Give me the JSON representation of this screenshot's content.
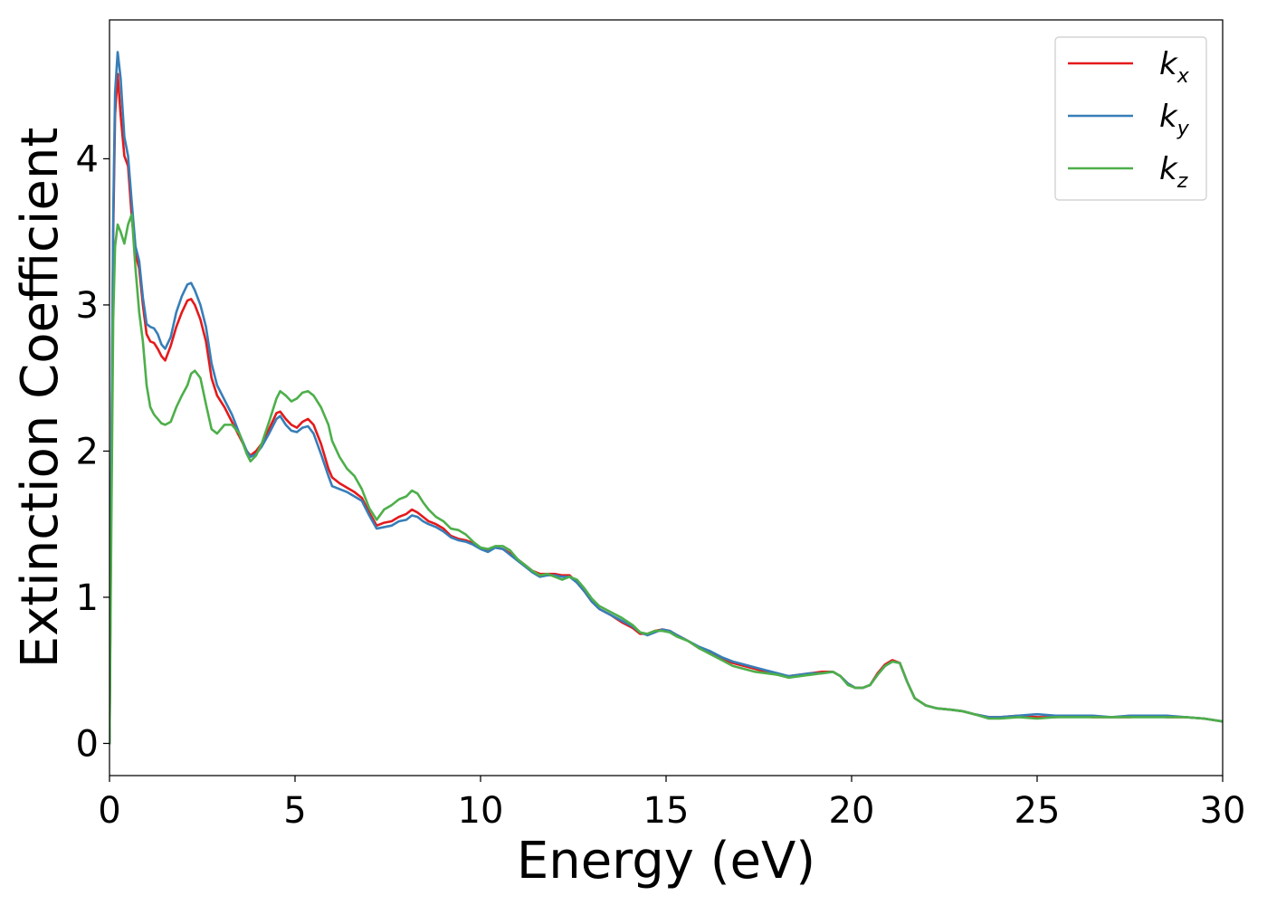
{
  "chart_data": {
    "type": "line",
    "title": "",
    "xlabel": "Energy (eV)",
    "ylabel": "Extinction Coefficient",
    "xlim": [
      0,
      30
    ],
    "ylim": [
      -0.22,
      4.95
    ],
    "xticks": [
      0,
      5,
      10,
      15,
      20,
      25,
      30
    ],
    "yticks": [
      0,
      1,
      2,
      3,
      4
    ],
    "grid": false,
    "legend_position": "top-right",
    "series": [
      {
        "name": "k_x",
        "legend_main": "k",
        "legend_sub": "x",
        "color": "#e41a1c",
        "x": [
          0,
          0.05,
          0.1,
          0.15,
          0.22,
          0.3,
          0.4,
          0.5,
          0.6,
          0.7,
          0.8,
          0.9,
          1.0,
          1.1,
          1.2,
          1.3,
          1.4,
          1.5,
          1.65,
          1.8,
          1.95,
          2.1,
          2.2,
          2.3,
          2.45,
          2.6,
          2.75,
          2.9,
          3.1,
          3.3,
          3.5,
          3.7,
          3.8,
          3.95,
          4.1,
          4.3,
          4.5,
          4.6,
          4.75,
          4.9,
          5.05,
          5.2,
          5.35,
          5.5,
          5.7,
          5.9,
          6.0,
          6.2,
          6.4,
          6.6,
          6.8,
          7.0,
          7.2,
          7.4,
          7.6,
          7.8,
          8.0,
          8.15,
          8.3,
          8.45,
          8.6,
          8.8,
          9.0,
          9.2,
          9.4,
          9.6,
          9.8,
          10.0,
          10.2,
          10.4,
          10.6,
          10.8,
          11.0,
          11.2,
          11.4,
          11.6,
          11.8,
          12.0,
          12.2,
          12.4,
          12.6,
          12.8,
          13.0,
          13.2,
          13.5,
          13.8,
          14.1,
          14.3,
          14.5,
          14.7,
          14.9,
          15.1,
          15.3,
          15.6,
          15.9,
          16.2,
          16.5,
          16.8,
          17.1,
          17.4,
          17.7,
          18.0,
          18.3,
          18.6,
          18.9,
          19.2,
          19.5,
          19.7,
          19.9,
          20.1,
          20.3,
          20.5,
          20.7,
          20.9,
          21.1,
          21.3,
          21.5,
          21.7,
          22.0,
          22.3,
          22.7,
          23.0,
          23.3,
          23.7,
          24.0,
          24.5,
          25.0,
          25.5,
          26.0,
          26.5,
          27.0,
          27.5,
          28.0,
          28.5,
          29.0,
          29.5,
          30.0
        ],
        "y": [
          0,
          1.8,
          3.5,
          4.3,
          4.58,
          4.3,
          4.02,
          3.95,
          3.6,
          3.35,
          3.25,
          3.0,
          2.8,
          2.75,
          2.74,
          2.7,
          2.65,
          2.62,
          2.72,
          2.85,
          2.95,
          3.03,
          3.04,
          3.0,
          2.9,
          2.75,
          2.5,
          2.38,
          2.3,
          2.2,
          2.1,
          2.0,
          1.97,
          2.0,
          2.05,
          2.15,
          2.26,
          2.27,
          2.22,
          2.18,
          2.16,
          2.2,
          2.22,
          2.18,
          2.05,
          1.88,
          1.82,
          1.78,
          1.75,
          1.72,
          1.68,
          1.58,
          1.49,
          1.51,
          1.52,
          1.55,
          1.57,
          1.6,
          1.58,
          1.55,
          1.52,
          1.5,
          1.47,
          1.42,
          1.4,
          1.39,
          1.37,
          1.34,
          1.32,
          1.34,
          1.33,
          1.3,
          1.26,
          1.22,
          1.18,
          1.16,
          1.16,
          1.16,
          1.15,
          1.15,
          1.1,
          1.04,
          0.97,
          0.92,
          0.88,
          0.83,
          0.79,
          0.75,
          0.75,
          0.77,
          0.78,
          0.77,
          0.74,
          0.7,
          0.65,
          0.62,
          0.58,
          0.55,
          0.53,
          0.51,
          0.49,
          0.47,
          0.46,
          0.47,
          0.48,
          0.49,
          0.49,
          0.46,
          0.41,
          0.38,
          0.38,
          0.4,
          0.48,
          0.54,
          0.57,
          0.55,
          0.42,
          0.31,
          0.26,
          0.24,
          0.23,
          0.22,
          0.2,
          0.18,
          0.18,
          0.19,
          0.18,
          0.18,
          0.19,
          0.18,
          0.18,
          0.18,
          0.19,
          0.18,
          0.18,
          0.17,
          0.15
        ]
      },
      {
        "name": "k_y",
        "legend_main": "k",
        "legend_sub": "y",
        "color": "#377eb8",
        "x": [
          0,
          0.05,
          0.1,
          0.15,
          0.22,
          0.3,
          0.4,
          0.5,
          0.6,
          0.7,
          0.8,
          0.9,
          1.0,
          1.1,
          1.2,
          1.3,
          1.4,
          1.5,
          1.65,
          1.8,
          1.95,
          2.1,
          2.2,
          2.3,
          2.45,
          2.6,
          2.75,
          2.9,
          3.1,
          3.3,
          3.5,
          3.7,
          3.8,
          3.95,
          4.1,
          4.3,
          4.5,
          4.6,
          4.75,
          4.9,
          5.05,
          5.2,
          5.35,
          5.5,
          5.7,
          5.9,
          6.0,
          6.2,
          6.4,
          6.6,
          6.8,
          7.0,
          7.2,
          7.4,
          7.6,
          7.8,
          8.0,
          8.15,
          8.3,
          8.45,
          8.6,
          8.8,
          9.0,
          9.2,
          9.4,
          9.6,
          9.8,
          10.0,
          10.2,
          10.4,
          10.6,
          10.8,
          11.0,
          11.2,
          11.4,
          11.6,
          11.8,
          12.0,
          12.2,
          12.4,
          12.6,
          12.8,
          13.0,
          13.2,
          13.5,
          13.8,
          14.1,
          14.3,
          14.5,
          14.7,
          14.9,
          15.1,
          15.3,
          15.6,
          15.9,
          16.2,
          16.5,
          16.8,
          17.1,
          17.4,
          17.7,
          18.0,
          18.3,
          18.6,
          18.9,
          19.2,
          19.5,
          19.7,
          19.9,
          20.1,
          20.3,
          20.5,
          20.7,
          20.9,
          21.1,
          21.3,
          21.5,
          21.7,
          22.0,
          22.3,
          22.7,
          23.0,
          23.3,
          23.7,
          24.0,
          24.5,
          25.0,
          25.5,
          26.0,
          26.5,
          27.0,
          27.5,
          28.0,
          28.5,
          29.0,
          29.5,
          30.0
        ],
        "y": [
          0,
          1.9,
          3.6,
          4.45,
          4.73,
          4.55,
          4.15,
          4.02,
          3.7,
          3.4,
          3.3,
          3.05,
          2.87,
          2.85,
          2.84,
          2.8,
          2.73,
          2.7,
          2.78,
          2.95,
          3.06,
          3.14,
          3.15,
          3.1,
          3.0,
          2.85,
          2.6,
          2.45,
          2.35,
          2.25,
          2.12,
          2.0,
          1.96,
          1.98,
          2.03,
          2.12,
          2.22,
          2.24,
          2.18,
          2.14,
          2.13,
          2.16,
          2.17,
          2.12,
          1.98,
          1.83,
          1.76,
          1.74,
          1.72,
          1.69,
          1.66,
          1.56,
          1.47,
          1.48,
          1.49,
          1.52,
          1.53,
          1.56,
          1.55,
          1.52,
          1.5,
          1.48,
          1.45,
          1.41,
          1.39,
          1.38,
          1.36,
          1.33,
          1.31,
          1.34,
          1.33,
          1.29,
          1.25,
          1.21,
          1.17,
          1.14,
          1.15,
          1.15,
          1.14,
          1.14,
          1.1,
          1.04,
          0.97,
          0.92,
          0.88,
          0.84,
          0.8,
          0.76,
          0.74,
          0.76,
          0.78,
          0.77,
          0.74,
          0.7,
          0.66,
          0.63,
          0.59,
          0.56,
          0.54,
          0.52,
          0.5,
          0.48,
          0.46,
          0.47,
          0.48,
          0.48,
          0.49,
          0.46,
          0.41,
          0.38,
          0.38,
          0.4,
          0.47,
          0.53,
          0.56,
          0.55,
          0.42,
          0.31,
          0.26,
          0.24,
          0.23,
          0.22,
          0.2,
          0.18,
          0.18,
          0.19,
          0.2,
          0.19,
          0.19,
          0.19,
          0.18,
          0.19,
          0.19,
          0.19,
          0.18,
          0.17,
          0.15
        ]
      },
      {
        "name": "k_z",
        "legend_main": "k",
        "legend_sub": "z",
        "color": "#4daf4a",
        "x": [
          0,
          0.05,
          0.1,
          0.15,
          0.22,
          0.3,
          0.4,
          0.5,
          0.6,
          0.7,
          0.8,
          0.9,
          1.0,
          1.1,
          1.2,
          1.3,
          1.4,
          1.5,
          1.65,
          1.8,
          1.95,
          2.1,
          2.2,
          2.3,
          2.45,
          2.6,
          2.75,
          2.9,
          3.1,
          3.3,
          3.5,
          3.7,
          3.8,
          3.95,
          4.1,
          4.3,
          4.5,
          4.6,
          4.75,
          4.9,
          5.05,
          5.2,
          5.35,
          5.5,
          5.7,
          5.9,
          6.0,
          6.2,
          6.4,
          6.6,
          6.8,
          7.0,
          7.2,
          7.4,
          7.6,
          7.8,
          8.0,
          8.15,
          8.3,
          8.45,
          8.6,
          8.8,
          9.0,
          9.2,
          9.4,
          9.6,
          9.8,
          10.0,
          10.2,
          10.4,
          10.6,
          10.8,
          11.0,
          11.2,
          11.4,
          11.6,
          11.8,
          12.0,
          12.2,
          12.4,
          12.6,
          12.8,
          13.0,
          13.2,
          13.5,
          13.8,
          14.1,
          14.3,
          14.5,
          14.7,
          14.9,
          15.1,
          15.3,
          15.6,
          15.9,
          16.2,
          16.5,
          16.8,
          17.1,
          17.4,
          17.7,
          18.0,
          18.3,
          18.6,
          18.9,
          19.2,
          19.5,
          19.7,
          19.9,
          20.1,
          20.3,
          20.5,
          20.7,
          20.9,
          21.1,
          21.3,
          21.5,
          21.7,
          22.0,
          22.3,
          22.7,
          23.0,
          23.3,
          23.7,
          24.0,
          24.5,
          25.0,
          25.5,
          26.0,
          26.5,
          27.0,
          27.5,
          28.0,
          28.5,
          29.0,
          29.5,
          30.0
        ],
        "y": [
          0,
          1.5,
          2.9,
          3.4,
          3.55,
          3.5,
          3.42,
          3.55,
          3.62,
          3.25,
          2.95,
          2.75,
          2.45,
          2.3,
          2.25,
          2.22,
          2.19,
          2.18,
          2.2,
          2.3,
          2.38,
          2.45,
          2.53,
          2.55,
          2.5,
          2.32,
          2.15,
          2.12,
          2.18,
          2.18,
          2.12,
          1.98,
          1.93,
          1.97,
          2.05,
          2.2,
          2.36,
          2.41,
          2.38,
          2.34,
          2.36,
          2.4,
          2.41,
          2.38,
          2.3,
          2.18,
          2.07,
          1.96,
          1.88,
          1.83,
          1.74,
          1.61,
          1.53,
          1.6,
          1.63,
          1.67,
          1.69,
          1.73,
          1.71,
          1.65,
          1.6,
          1.55,
          1.52,
          1.47,
          1.46,
          1.43,
          1.38,
          1.34,
          1.33,
          1.35,
          1.35,
          1.32,
          1.26,
          1.22,
          1.18,
          1.15,
          1.16,
          1.14,
          1.12,
          1.14,
          1.12,
          1.06,
          0.99,
          0.94,
          0.9,
          0.86,
          0.81,
          0.76,
          0.75,
          0.77,
          0.77,
          0.76,
          0.73,
          0.7,
          0.65,
          0.61,
          0.57,
          0.53,
          0.51,
          0.49,
          0.48,
          0.47,
          0.45,
          0.46,
          0.47,
          0.48,
          0.49,
          0.46,
          0.4,
          0.38,
          0.38,
          0.4,
          0.47,
          0.53,
          0.56,
          0.55,
          0.42,
          0.31,
          0.26,
          0.24,
          0.23,
          0.22,
          0.2,
          0.17,
          0.17,
          0.18,
          0.17,
          0.18,
          0.18,
          0.18,
          0.18,
          0.18,
          0.18,
          0.18,
          0.18,
          0.17,
          0.15
        ]
      }
    ]
  }
}
